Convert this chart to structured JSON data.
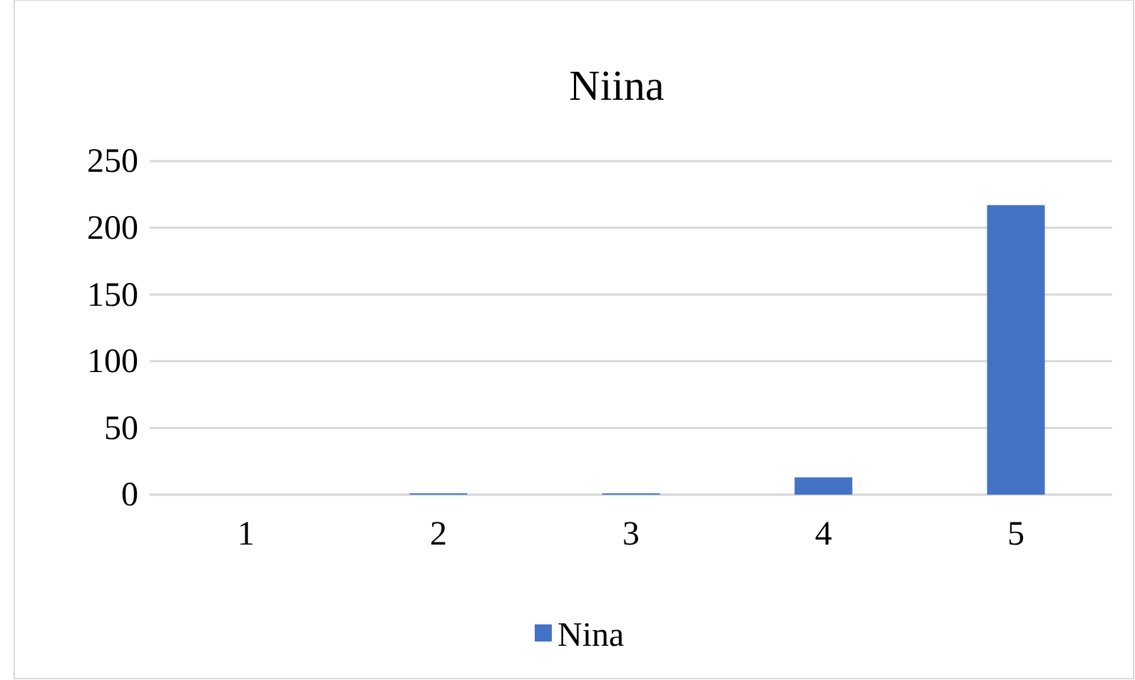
{
  "chart_data": {
    "type": "bar",
    "title": "Niina",
    "categories": [
      "1",
      "2",
      "3",
      "4",
      "5"
    ],
    "series": [
      {
        "name": "Nina",
        "color": "#4472c4",
        "values": [
          0,
          1,
          1,
          13,
          217
        ]
      }
    ],
    "ylim": [
      0,
      250
    ],
    "yticks": [
      0,
      50,
      100,
      150,
      200,
      250
    ],
    "grid": "y",
    "legend": "bottom"
  }
}
